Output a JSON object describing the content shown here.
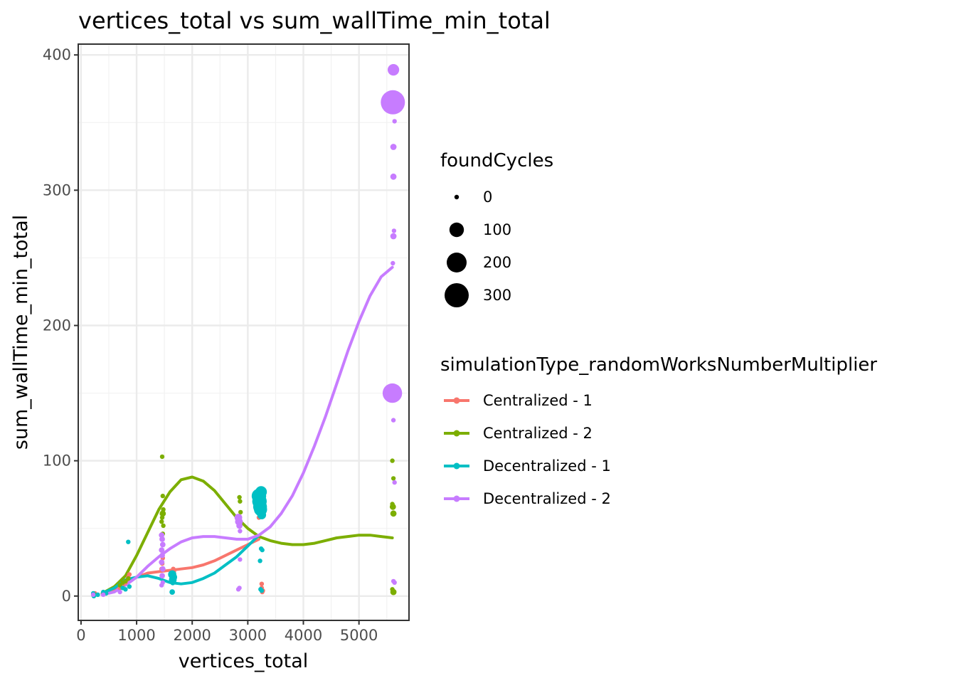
{
  "chart_data": {
    "type": "scatter",
    "title": "vertices_total  vs  sum_wallTime_min_total",
    "xlabel": "vertices_total",
    "ylabel": "sum_wallTime_min_total",
    "xlim": [
      -50,
      5900
    ],
    "ylim": [
      -18,
      408
    ],
    "x_ticks": [
      0,
      1000,
      2000,
      3000,
      4000,
      5000
    ],
    "x_tick_labels": [
      "0",
      "1000",
      "2000",
      "3000",
      "4000",
      "5000"
    ],
    "y_ticks": [
      0,
      100,
      200,
      300,
      400
    ],
    "y_tick_labels": [
      "0",
      "100",
      "200",
      "300",
      "400"
    ],
    "grid": true,
    "size_legend": {
      "title": "foundCycles",
      "entries": [
        {
          "label": "0",
          "value": 0
        },
        {
          "label": "100",
          "value": 100
        },
        {
          "label": "200",
          "value": 200
        },
        {
          "label": "300",
          "value": 300
        }
      ]
    },
    "color_legend": {
      "title": "simulationType_randomWorksNumberMultiplier",
      "placement": "right"
    },
    "series": [
      {
        "name": "Centralized - 1",
        "color": "#F8766D",
        "points": [
          [
            220,
            1,
            0
          ],
          [
            250,
            2,
            0
          ],
          [
            300,
            1,
            0
          ],
          [
            400,
            2,
            0
          ],
          [
            450,
            2,
            0
          ],
          [
            700,
            6,
            0
          ],
          [
            750,
            8,
            0
          ],
          [
            800,
            10,
            0
          ],
          [
            850,
            14,
            0
          ],
          [
            870,
            16,
            0
          ],
          [
            1450,
            20,
            0
          ],
          [
            1460,
            24,
            0
          ],
          [
            1470,
            28,
            0
          ],
          [
            1650,
            16,
            0
          ],
          [
            1660,
            20,
            0
          ],
          [
            1670,
            18,
            0
          ],
          [
            3200,
            58,
            0
          ],
          [
            3210,
            62,
            0
          ],
          [
            3220,
            60,
            0
          ],
          [
            3250,
            6,
            0
          ],
          [
            3250,
            9,
            0
          ],
          [
            3260,
            3,
            0
          ],
          [
            3270,
            4,
            0
          ]
        ],
        "smooth": [
          [
            380,
            2
          ],
          [
            600,
            5
          ],
          [
            800,
            10
          ],
          [
            1000,
            14
          ],
          [
            1200,
            17
          ],
          [
            1400,
            18
          ],
          [
            1600,
            19
          ],
          [
            1800,
            20
          ],
          [
            2000,
            21
          ],
          [
            2200,
            23
          ],
          [
            2400,
            26
          ],
          [
            2600,
            30
          ],
          [
            2800,
            34
          ],
          [
            3000,
            38
          ],
          [
            3200,
            42
          ]
        ]
      },
      {
        "name": "Centralized - 2",
        "color": "#7CAE00",
        "points": [
          [
            220,
            1,
            0
          ],
          [
            250,
            1,
            0
          ],
          [
            400,
            2,
            0
          ],
          [
            700,
            8,
            0
          ],
          [
            750,
            10,
            0
          ],
          [
            800,
            11,
            0
          ],
          [
            850,
            13,
            0
          ],
          [
            1460,
            103,
            0
          ],
          [
            1470,
            74,
            0
          ],
          [
            1480,
            64,
            0
          ],
          [
            1470,
            61,
            10
          ],
          [
            1460,
            58,
            0
          ],
          [
            1450,
            55,
            0
          ],
          [
            1480,
            52,
            0
          ],
          [
            1470,
            46,
            0
          ],
          [
            2850,
            73,
            0
          ],
          [
            2860,
            70,
            0
          ],
          [
            2870,
            62,
            0
          ],
          [
            3200,
            65,
            0
          ],
          [
            5600,
            100,
            0
          ],
          [
            5620,
            87,
            0
          ],
          [
            5600,
            68,
            0
          ],
          [
            5610,
            66,
            10
          ],
          [
            5620,
            61,
            10
          ],
          [
            5600,
            5,
            0
          ],
          [
            5620,
            3,
            10
          ]
        ],
        "smooth": [
          [
            380,
            2
          ],
          [
            600,
            7
          ],
          [
            800,
            15
          ],
          [
            1000,
            30
          ],
          [
            1200,
            47
          ],
          [
            1400,
            64
          ],
          [
            1600,
            77
          ],
          [
            1800,
            86
          ],
          [
            2000,
            88
          ],
          [
            2200,
            85
          ],
          [
            2400,
            78
          ],
          [
            2600,
            68
          ],
          [
            2800,
            58
          ],
          [
            3000,
            50
          ],
          [
            3200,
            44
          ],
          [
            3400,
            41
          ],
          [
            3600,
            39
          ],
          [
            3800,
            38
          ],
          [
            4000,
            38
          ],
          [
            4200,
            39
          ],
          [
            4400,
            41
          ],
          [
            4600,
            43
          ],
          [
            4800,
            44
          ],
          [
            5000,
            45
          ],
          [
            5200,
            45
          ],
          [
            5400,
            44
          ],
          [
            5600,
            43
          ]
        ]
      },
      {
        "name": "Decentralized - 1",
        "color": "#00BFC4",
        "points": [
          [
            220,
            2,
            0
          ],
          [
            230,
            0,
            0
          ],
          [
            300,
            1,
            0
          ],
          [
            400,
            3,
            0
          ],
          [
            450,
            2,
            0
          ],
          [
            750,
            6,
            0
          ],
          [
            800,
            5,
            0
          ],
          [
            850,
            40,
            0
          ],
          [
            870,
            7,
            0
          ],
          [
            1640,
            16,
            25
          ],
          [
            1650,
            12,
            20
          ],
          [
            1660,
            14,
            20
          ],
          [
            1640,
            3,
            5
          ],
          [
            1650,
            10,
            5
          ],
          [
            3200,
            74,
            100
          ],
          [
            3210,
            70,
            100
          ],
          [
            3220,
            66,
            90
          ],
          [
            3230,
            64,
            80
          ],
          [
            3240,
            77,
            60
          ],
          [
            3250,
            60,
            30
          ],
          [
            3240,
            35,
            0
          ],
          [
            3260,
            34,
            0
          ],
          [
            3220,
            26,
            0
          ],
          [
            3230,
            5,
            0
          ],
          [
            3250,
            4,
            0
          ]
        ],
        "smooth": [
          [
            380,
            2
          ],
          [
            600,
            6
          ],
          [
            800,
            12
          ],
          [
            1000,
            14
          ],
          [
            1200,
            15
          ],
          [
            1400,
            13
          ],
          [
            1600,
            10
          ],
          [
            1800,
            9
          ],
          [
            2000,
            10
          ],
          [
            2200,
            13
          ],
          [
            2400,
            17
          ],
          [
            2600,
            23
          ],
          [
            2800,
            29
          ],
          [
            3000,
            37
          ],
          [
            3200,
            45
          ]
        ]
      },
      {
        "name": "Decentralized - 2",
        "color": "#C77CFF",
        "points": [
          [
            220,
            1,
            0
          ],
          [
            400,
            1,
            0
          ],
          [
            700,
            3,
            0
          ],
          [
            1450,
            45,
            5
          ],
          [
            1460,
            42,
            5
          ],
          [
            1470,
            38,
            5
          ],
          [
            1450,
            34,
            5
          ],
          [
            1460,
            30,
            5
          ],
          [
            1450,
            25,
            5
          ],
          [
            1470,
            20,
            5
          ],
          [
            1460,
            15,
            5
          ],
          [
            1450,
            8,
            0
          ],
          [
            1470,
            10,
            0
          ],
          [
            2830,
            58,
            20
          ],
          [
            2840,
            55,
            20
          ],
          [
            2850,
            52,
            10
          ],
          [
            2860,
            48,
            0
          ],
          [
            2860,
            27,
            0
          ],
          [
            2830,
            5,
            0
          ],
          [
            2850,
            6,
            0
          ],
          [
            5620,
            389,
            60
          ],
          [
            5610,
            365,
            300
          ],
          [
            5640,
            351,
            0
          ],
          [
            5620,
            332,
            10
          ],
          [
            5620,
            310,
            10
          ],
          [
            5630,
            270,
            0
          ],
          [
            5620,
            266,
            10
          ],
          [
            5610,
            246,
            0
          ],
          [
            5600,
            150,
            190
          ],
          [
            5620,
            130,
            0
          ],
          [
            5640,
            84,
            0
          ],
          [
            5620,
            11,
            0
          ],
          [
            5640,
            10,
            0
          ]
        ],
        "smooth": [
          [
            380,
            1
          ],
          [
            600,
            3
          ],
          [
            800,
            8
          ],
          [
            1000,
            14
          ],
          [
            1200,
            22
          ],
          [
            1400,
            29
          ],
          [
            1600,
            35
          ],
          [
            1800,
            40
          ],
          [
            2000,
            43
          ],
          [
            2200,
            44
          ],
          [
            2400,
            44
          ],
          [
            2600,
            43
          ],
          [
            2800,
            42
          ],
          [
            3000,
            42
          ],
          [
            3200,
            45
          ],
          [
            3400,
            51
          ],
          [
            3600,
            61
          ],
          [
            3800,
            74
          ],
          [
            4000,
            91
          ],
          [
            4200,
            111
          ],
          [
            4400,
            133
          ],
          [
            4600,
            157
          ],
          [
            4800,
            181
          ],
          [
            5000,
            203
          ],
          [
            5200,
            222
          ],
          [
            5400,
            236
          ],
          [
            5600,
            243
          ]
        ]
      }
    ]
  }
}
